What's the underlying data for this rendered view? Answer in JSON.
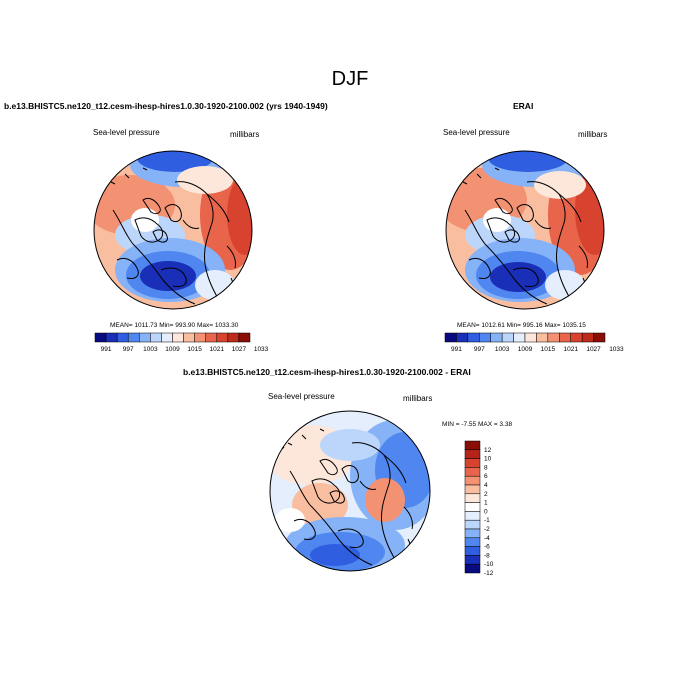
{
  "figure": {
    "title": "DJF"
  },
  "panels": [
    {
      "id": "model",
      "title": "b.e13.BHISTC5.ne120_t12.cesm-ihesp-hires1.0.30-1920-2100.002 (yrs 1940-1949)",
      "left_label": "Sea-level pressure",
      "right_label": "millibars",
      "stats": "MEAN= 1011.73  Min= 993.90  Max= 1033.30"
    },
    {
      "id": "erai",
      "title": "ERAI",
      "left_label": "Sea-level pressure",
      "right_label": "millibars",
      "stats": "MEAN= 1012.61  Min= 995.16  Max= 1035.15"
    },
    {
      "id": "diff",
      "title": "b.e13.BHISTC5.ne120_t12.cesm-ihesp-hires1.0.30-1920-2100.002 - ERAI",
      "left_label": "Sea-level pressure",
      "right_label": "millibars",
      "stats": "MIN =  -7.55 MAX =   3.38"
    }
  ],
  "colorbars": {
    "horizontal": {
      "labels": [
        "991",
        "997",
        "1003",
        "1009",
        "1015",
        "1021",
        "1027",
        "1033"
      ],
      "colors": [
        "#0a0a80",
        "#1a2fb8",
        "#2f5ee0",
        "#4f86ef",
        "#86b2f7",
        "#bcd6fb",
        "#e4eefc",
        "#fde6da",
        "#f9bea0",
        "#f39272",
        "#e8644a",
        "#d8432f",
        "#be2a1c",
        "#8a0d06"
      ]
    },
    "vertical": {
      "labels": [
        "12",
        "10",
        "8",
        "6",
        "4",
        "2",
        "1",
        "0",
        "-1",
        "-2",
        "-4",
        "-6",
        "-8",
        "-10",
        "-12"
      ],
      "colors": [
        "#8a0d06",
        "#b42418",
        "#d8432f",
        "#e8644a",
        "#f39272",
        "#f9bea0",
        "#fde6da",
        "#ffffff",
        "#e4eefc",
        "#bcd6fb",
        "#86b2f7",
        "#4f86ef",
        "#2f5ee0",
        "#1a2fb8",
        "#0a0a80"
      ]
    }
  }
}
